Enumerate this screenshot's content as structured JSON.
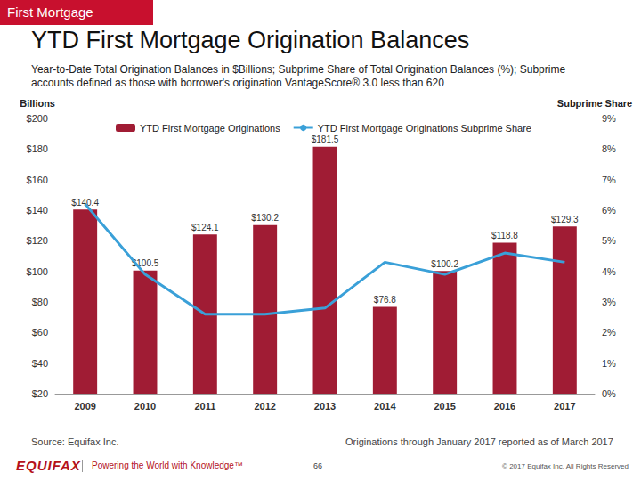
{
  "page": {
    "header": "First Mortgage",
    "source": "Source: Equifax Inc.",
    "note": "Originations through January 2017 reported as of March 2017",
    "page_number": "66",
    "logo": "EQUIFAX",
    "tagline": "Powering the World with Knowledge™",
    "copyright": "© 2017 Equifax Inc. All Rights Reserved"
  },
  "chart_data": {
    "type": "bar",
    "title": "YTD First Mortgage Origination Balances",
    "subtitle": "Year-to-Date Total Origination Balances in $Billions; Subprime Share of Total Origination Balances (%); Subprime accounts defined as those with borrower's origination VantageScore® 3.0 less than 620",
    "y_label": "Billions",
    "y2_label": "Subprime Share",
    "categories": [
      "2009",
      "2010",
      "2011",
      "2012",
      "2013",
      "2014",
      "2015",
      "2016",
      "2017"
    ],
    "series": [
      {
        "name": "YTD First Mortgage Originations",
        "type": "bar",
        "color": "#a01c34",
        "values": [
          140.4,
          100.5,
          124.1,
          130.2,
          181.5,
          76.8,
          100.2,
          118.8,
          129.3
        ],
        "value_labels": [
          "$140.4",
          "$100.5",
          "$124.1",
          "$130.2",
          "$181.5",
          "$76.8",
          "$100.2",
          "$118.8",
          "$129.3"
        ],
        "data_labels": true
      },
      {
        "name": "YTD First Mortgage Originations Subprime Share",
        "type": "line",
        "axis": "y2",
        "color": "#3aa0d8",
        "marker": "none",
        "line_style": "solid",
        "values": [
          6.2,
          3.9,
          2.6,
          2.6,
          2.8,
          4.3,
          3.9,
          4.6,
          4.3
        ]
      }
    ],
    "ylim": [
      20,
      200
    ],
    "yticks": [
      {
        "value": 20,
        "label": "$20"
      },
      {
        "value": 40,
        "label": "$40"
      },
      {
        "value": 60,
        "label": "$60"
      },
      {
        "value": 80,
        "label": "$80"
      },
      {
        "value": 100,
        "label": "$100"
      },
      {
        "value": 120,
        "label": "$120"
      },
      {
        "value": 140,
        "label": "$140"
      },
      {
        "value": 160,
        "label": "$160"
      },
      {
        "value": 180,
        "label": "$180"
      },
      {
        "value": 200,
        "label": "$200"
      }
    ],
    "y2lim": [
      0,
      9
    ],
    "y2ticks": [
      {
        "value": 0,
        "label": "0%"
      },
      {
        "value": 1,
        "label": "1%"
      },
      {
        "value": 2,
        "label": "2%"
      },
      {
        "value": 3,
        "label": "3%"
      },
      {
        "value": 4,
        "label": "4%"
      },
      {
        "value": 5,
        "label": "5%"
      },
      {
        "value": 6,
        "label": "6%"
      },
      {
        "value": 7,
        "label": "7%"
      },
      {
        "value": 8,
        "label": "8%"
      },
      {
        "value": 9,
        "label": "9%"
      }
    ],
    "grid": false,
    "legend": "top-left"
  }
}
